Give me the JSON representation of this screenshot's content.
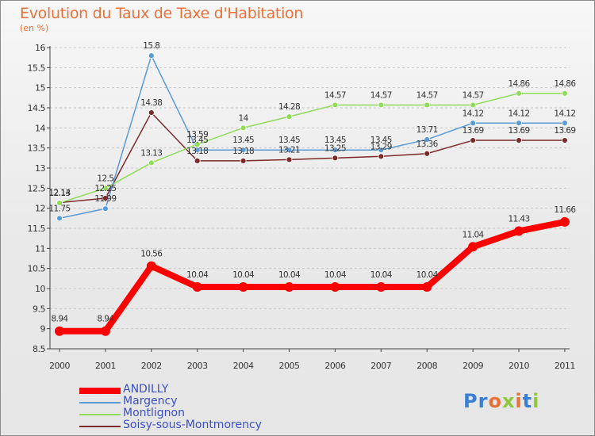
{
  "header": {
    "title": "Evolution du Taux de Taxe d'Habitation",
    "subtitle": "(en %)"
  },
  "logo": {
    "text": "Proxiti"
  },
  "chart_data": {
    "type": "line",
    "x": [
      "2000",
      "2001",
      "2002",
      "2003",
      "2004",
      "2005",
      "2006",
      "2007",
      "2008",
      "2009",
      "2010",
      "2011"
    ],
    "ylim": [
      8.5,
      16
    ],
    "yticks": [
      "8.5",
      "9",
      "9.5",
      "10",
      "10.5",
      "11",
      "11.5",
      "12",
      "12.5",
      "13",
      "13.5",
      "14",
      "14.5",
      "15",
      "15.5",
      "16"
    ],
    "grid": "horizontal dashed",
    "legend_position": "bottom-left",
    "series": [
      {
        "name": "ANDILLY",
        "color": "#ff0000",
        "values": [
          8.94,
          8.94,
          10.56,
          10.04,
          10.04,
          10.04,
          10.04,
          10.04,
          10.04,
          11.04,
          11.43,
          11.66
        ],
        "labels": [
          "8.94",
          "8.94",
          "10.56",
          "10.04",
          "10.04",
          "10.04",
          "10.04",
          "10.04",
          "10.04",
          "11.04",
          "11.43",
          "11.66"
        ]
      },
      {
        "name": "Margency",
        "color": "#5b9bd5",
        "values": [
          11.75,
          11.99,
          15.8,
          13.45,
          13.45,
          13.45,
          13.45,
          13.45,
          13.71,
          14.12,
          14.12,
          14.12
        ],
        "labels": [
          "11.75",
          "11.99",
          "15.8",
          "13.45",
          "13.45",
          "13.45",
          "13.45",
          "13.45",
          "13.71",
          "14.12",
          "14.12",
          "14.12"
        ]
      },
      {
        "name": "Montlignon",
        "color": "#8fdc5a",
        "values": [
          12.13,
          12.5,
          13.13,
          13.59,
          14,
          14.28,
          14.57,
          14.57,
          14.57,
          14.57,
          14.86,
          14.86
        ],
        "labels": [
          "12.13",
          "12.5",
          "13.13",
          "13.59",
          "14",
          "14.28",
          "14.57",
          "14.57",
          "14.57",
          "14.57",
          "14.86",
          "14.86"
        ]
      },
      {
        "name": "Soisy-sous-Montmorency",
        "color": "#7b2a2a",
        "values": [
          12.14,
          12.25,
          14.38,
          13.18,
          13.18,
          13.21,
          13.25,
          13.29,
          13.36,
          13.69,
          13.69,
          13.69
        ],
        "labels": [
          "12.14",
          "12.25",
          "14.38",
          "13.18",
          "13.18",
          "13.21",
          "13.25",
          "13.29",
          "13.36",
          "13.69",
          "13.69",
          "13.69"
        ]
      }
    ]
  }
}
